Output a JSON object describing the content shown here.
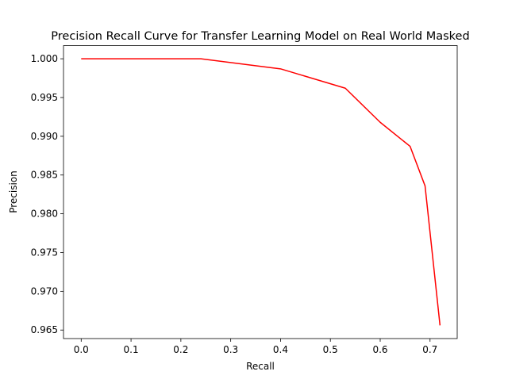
{
  "chart_data": {
    "type": "line",
    "title": "Precision Recall Curve for Transfer Learning Model on Real World Masked",
    "xlabel": "Recall",
    "ylabel": "Precision",
    "xlim": [
      -0.0355,
      0.7545
    ],
    "ylim": [
      0.9639,
      1.0017
    ],
    "xticks": [
      0.0,
      0.1,
      0.2,
      0.3,
      0.4,
      0.5,
      0.6,
      0.7
    ],
    "xtick_labels": [
      "0.0",
      "0.1",
      "0.2",
      "0.3",
      "0.4",
      "0.5",
      "0.6",
      "0.7"
    ],
    "yticks": [
      0.965,
      0.97,
      0.975,
      0.98,
      0.985,
      0.99,
      0.995,
      1.0
    ],
    "ytick_labels": [
      "0.965",
      "0.970",
      "0.975",
      "0.980",
      "0.985",
      "0.990",
      "0.995",
      "1.000"
    ],
    "grid": false,
    "series": [
      {
        "color": "#ff0000",
        "x": [
          0.0,
          0.24,
          0.4,
          0.53,
          0.6,
          0.66,
          0.69,
          0.72
        ],
        "y": [
          1.0,
          1.0,
          0.9987,
          0.9962,
          0.9918,
          0.9887,
          0.9836,
          0.9656
        ]
      }
    ]
  }
}
